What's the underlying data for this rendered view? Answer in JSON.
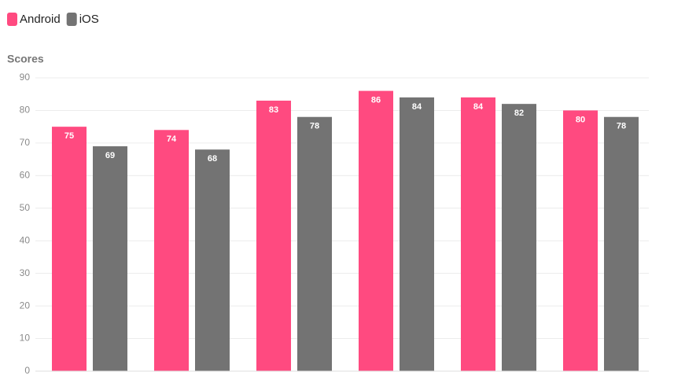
{
  "chart_data": {
    "type": "bar",
    "y_label": "Scores",
    "categories": [
      null,
      null,
      null,
      null,
      null,
      null
    ],
    "series": [
      {
        "name": "Android",
        "color": "#ff4a80",
        "values": [
          75,
          74,
          83,
          86,
          84,
          80
        ]
      },
      {
        "name": "iOS",
        "color": "#737373",
        "values": [
          69,
          68,
          78,
          84,
          82,
          78
        ]
      }
    ],
    "ylim": [
      0,
      90
    ],
    "yticks": [
      0,
      10,
      20,
      30,
      40,
      50,
      60,
      70,
      80,
      90
    ],
    "grid": true,
    "legend": "top-left"
  }
}
